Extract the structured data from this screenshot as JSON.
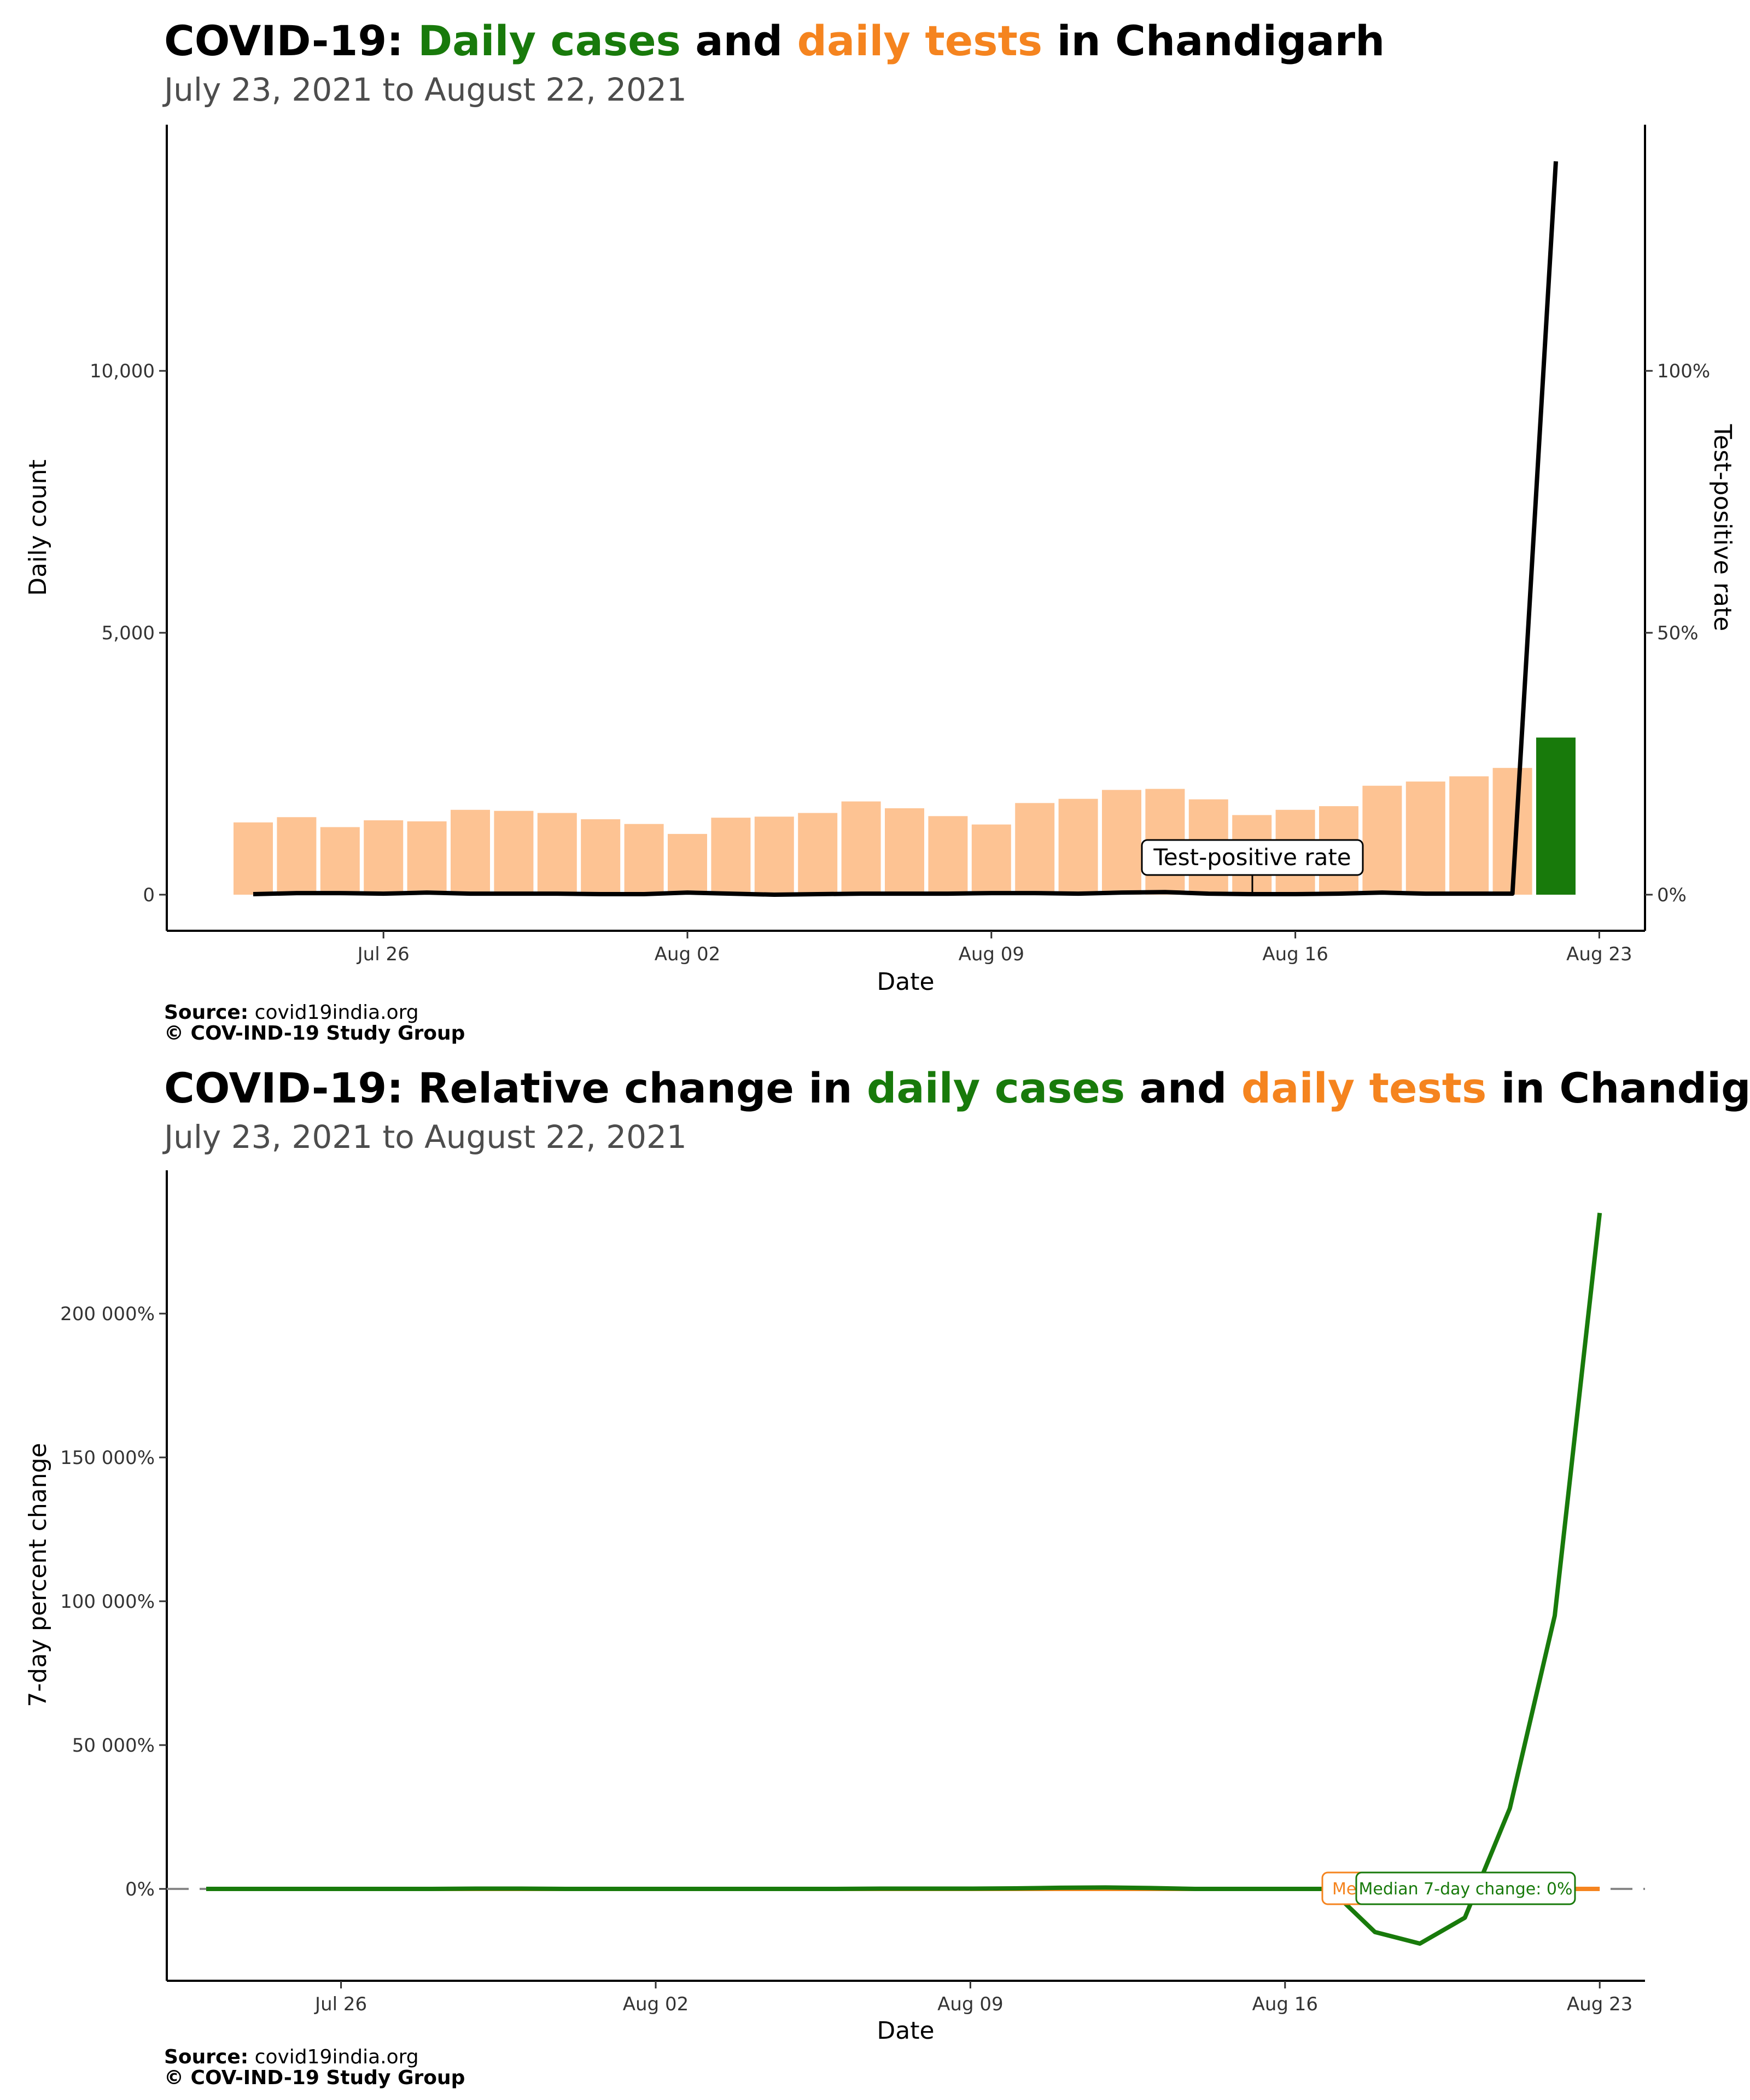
{
  "chart_data": [
    {
      "type": "bar",
      "title_parts": [
        "COVID-19: ",
        "Daily cases",
        " and ",
        "daily tests",
        " in Chandigarh"
      ],
      "subtitle": "July 23, 2021 to August 22, 2021",
      "xlabel": "Date",
      "ylabel": "Daily count",
      "y2label": "Test-positive rate",
      "x_ticks": [
        "Jul 26",
        "Aug 02",
        "Aug 09",
        "Aug 16",
        "Aug 23"
      ],
      "y_ticks": [
        "0",
        "5,000",
        "10,000"
      ],
      "y2_ticks": [
        "0%",
        "50%",
        "100%"
      ],
      "ylim": [
        0,
        14000
      ],
      "y2lim": [
        0,
        1.4
      ],
      "annotation": "Test-positive rate",
      "dates": [
        "Jul 23",
        "Jul 24",
        "Jul 25",
        "Jul 26",
        "Jul 27",
        "Jul 28",
        "Jul 29",
        "Jul 30",
        "Jul 31",
        "Aug 01",
        "Aug 02",
        "Aug 03",
        "Aug 04",
        "Aug 05",
        "Aug 06",
        "Aug 07",
        "Aug 08",
        "Aug 09",
        "Aug 10",
        "Aug 11",
        "Aug 12",
        "Aug 13",
        "Aug 14",
        "Aug 15",
        "Aug 16",
        "Aug 17",
        "Aug 18",
        "Aug 19",
        "Aug 20",
        "Aug 21",
        "Aug 22"
      ],
      "series": [
        {
          "values": [
            1380,
            1480,
            1290,
            1420,
            1400,
            1620,
            1600,
            1560,
            1440,
            1350,
            1160,
            1470,
            1490,
            1560,
            1780,
            1650,
            1500,
            1340,
            1750,
            1830,
            2000,
            2020,
            1820,
            1520,
            1620,
            1690,
            2080,
            2160,
            2260,
            2420,
            0
          ]
        },
        {
          "values": [
            0,
            0,
            0,
            0,
            0,
            0,
            0,
            0,
            0,
            0,
            0,
            0,
            0,
            0,
            0,
            0,
            0,
            0,
            0,
            0,
            0,
            0,
            0,
            0,
            0,
            0,
            0,
            0,
            0,
            0,
            3000
          ]
        },
        {
          "values": [
            0.001,
            0.003,
            0.003,
            0.002,
            0.004,
            0.002,
            0.002,
            0.002,
            0.001,
            0.001,
            0.004,
            0.002,
            0.0,
            0.001,
            0.002,
            0.002,
            0.002,
            0.003,
            0.003,
            0.002,
            0.004,
            0.005,
            0.002,
            0.001,
            0.001,
            0.002,
            0.004,
            0.002,
            0.002,
            0.002,
            1.4
          ]
        }
      ],
      "colors": {
        "tests": "#fdc393",
        "cases": "#187a0b",
        "tpr": "#000000"
      },
      "source_label": "Source:",
      "source": "covid19india.org",
      "copyright": "© COV-IND-19 Study Group"
    },
    {
      "type": "line",
      "title_parts": [
        "COVID-19: Relative change in ",
        "daily cases",
        " and ",
        "daily tests",
        " in Chandigarh"
      ],
      "subtitle": "July 23, 2021 to August 22, 2021",
      "xlabel": "Date",
      "ylabel": "7-day percent change",
      "x_ticks": [
        "Jul 26",
        "Aug 02",
        "Aug 09",
        "Aug 16",
        "Aug 23"
      ],
      "y_ticks": [
        "0%",
        "50 000%",
        "100 000%",
        "150 000%",
        "200 000%"
      ],
      "ylim": [
        -32000,
        250000
      ],
      "x_days": [
        0,
        1,
        2,
        3,
        4,
        5,
        6,
        7,
        8,
        9,
        10,
        11,
        12,
        13,
        14,
        15,
        16,
        17,
        18,
        19,
        20,
        21,
        22,
        23,
        24,
        25,
        26,
        27,
        28,
        29,
        30,
        31
      ],
      "series": [
        {
          "values": [
            0,
            0,
            0,
            0,
            0,
            0,
            0,
            0,
            0,
            0,
            0,
            0,
            0,
            0,
            0,
            0,
            0,
            0,
            0,
            0,
            0,
            0,
            0,
            0,
            0,
            0,
            0,
            0,
            0,
            0,
            0,
            0
          ]
        },
        {
          "values": [
            0,
            0,
            0,
            0,
            0,
            0,
            100,
            100,
            0,
            0,
            0,
            0,
            0,
            0,
            0,
            100,
            100,
            100,
            200,
            400,
            500,
            300,
            0,
            0,
            0,
            0,
            -15000,
            -19000,
            -10000,
            28000,
            95000,
            235000
          ]
        }
      ],
      "median_labels": [
        "Median 7-day change: 0%",
        "Median 7-day change: 0%"
      ],
      "colors": {
        "tests": "#f5841f",
        "cases": "#187a0b",
        "zero": "#888888"
      },
      "source_label": "Source:",
      "source": "covid19india.org",
      "copyright": "© COV-IND-19 Study Group"
    }
  ]
}
